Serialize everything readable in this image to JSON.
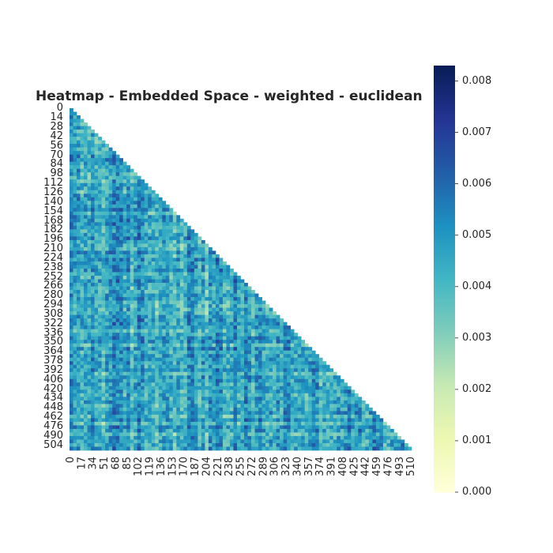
{
  "chart_data": {
    "type": "heatmap",
    "title": "Heatmap - Embedded Space - weighted - euclidean",
    "mask": "upper-triangle",
    "n": 512,
    "x_tick_labels": [
      "0",
      "17",
      "34",
      "51",
      "68",
      "85",
      "102",
      "119",
      "136",
      "153",
      "170",
      "187",
      "204",
      "221",
      "238",
      "255",
      "272",
      "289",
      "306",
      "323",
      "340",
      "357",
      "374",
      "391",
      "408",
      "425",
      "442",
      "459",
      "476",
      "493",
      "510"
    ],
    "y_tick_labels": [
      "0",
      "14",
      "28",
      "42",
      "56",
      "70",
      "84",
      "98",
      "112",
      "126",
      "140",
      "154",
      "168",
      "182",
      "196",
      "210",
      "224",
      "238",
      "252",
      "266",
      "280",
      "294",
      "308",
      "322",
      "336",
      "350",
      "364",
      "378",
      "392",
      "406",
      "420",
      "434",
      "448",
      "462",
      "476",
      "490",
      "504"
    ],
    "colorbar": {
      "cmap": "YlGnBu",
      "vmin": 0.0,
      "vmax": 0.0083,
      "tick_labels": [
        "0.000",
        "0.001",
        "0.002",
        "0.003",
        "0.004",
        "0.005",
        "0.006",
        "0.007",
        "0.008"
      ],
      "tick_values": [
        0.0,
        0.001,
        0.002,
        0.003,
        0.004,
        0.005,
        0.006,
        0.007,
        0.008
      ]
    },
    "typical_value_range": [
      0.0025,
      0.0065
    ]
  }
}
